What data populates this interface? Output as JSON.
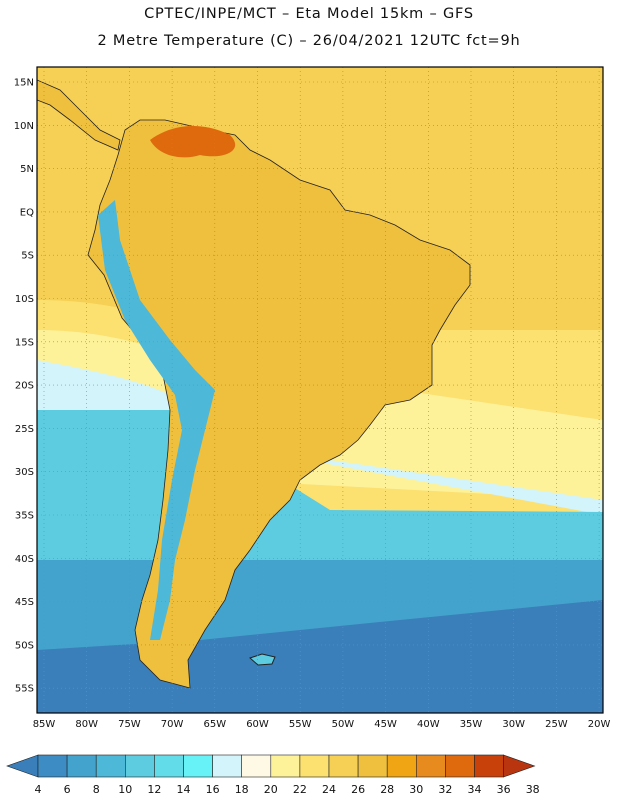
{
  "title_line1": "CPTEC/INPE/MCT –  Eta Model 15km – GFS",
  "title_line2": "2 Metre Temperature (C) – 26/04/2021 12UTC fct=9h",
  "lat_labels": [
    "15N",
    "10N",
    "5N",
    "EQ",
    "5S",
    "10S",
    "15S",
    "20S",
    "25S",
    "30S",
    "35S",
    "40S",
    "45S",
    "50S",
    "55S"
  ],
  "lon_labels": [
    "85W",
    "80W",
    "75W",
    "70W",
    "65W",
    "60W",
    "55W",
    "50W",
    "45W",
    "40W",
    "35W",
    "30W",
    "25W",
    "20W"
  ],
  "colorbar": {
    "values": [
      "4",
      "6",
      "8",
      "10",
      "12",
      "14",
      "16",
      "18",
      "20",
      "22",
      "24",
      "26",
      "28",
      "30",
      "32",
      "34",
      "36",
      "38"
    ],
    "colors": [
      "#3a7fba",
      "#3d8cc4",
      "#44a3cd",
      "#4db8d8",
      "#5dcbe0",
      "#63dcea",
      "#66f2f6",
      "#d2f4fa",
      "#fdf9e4",
      "#fdf29a",
      "#fce070",
      "#f6cf55",
      "#efbf3e",
      "#f0a514",
      "#e88b1e",
      "#df6a0d",
      "#c8410a",
      "#b83510"
    ]
  },
  "map_colors": {
    "ocean_tropical": "#f6cf55",
    "ocean_warm": "#fce070",
    "ocean_mild": "#fdf29a",
    "ocean_cool": "#d2f4fa",
    "ocean_cold1": "#5dcbe0",
    "ocean_cold2": "#44a3cd",
    "ocean_cold3": "#3a7fba",
    "land_hot": "#efbf3e",
    "land_very_hot": "#df6a0d",
    "andes": "#4db8d8"
  }
}
